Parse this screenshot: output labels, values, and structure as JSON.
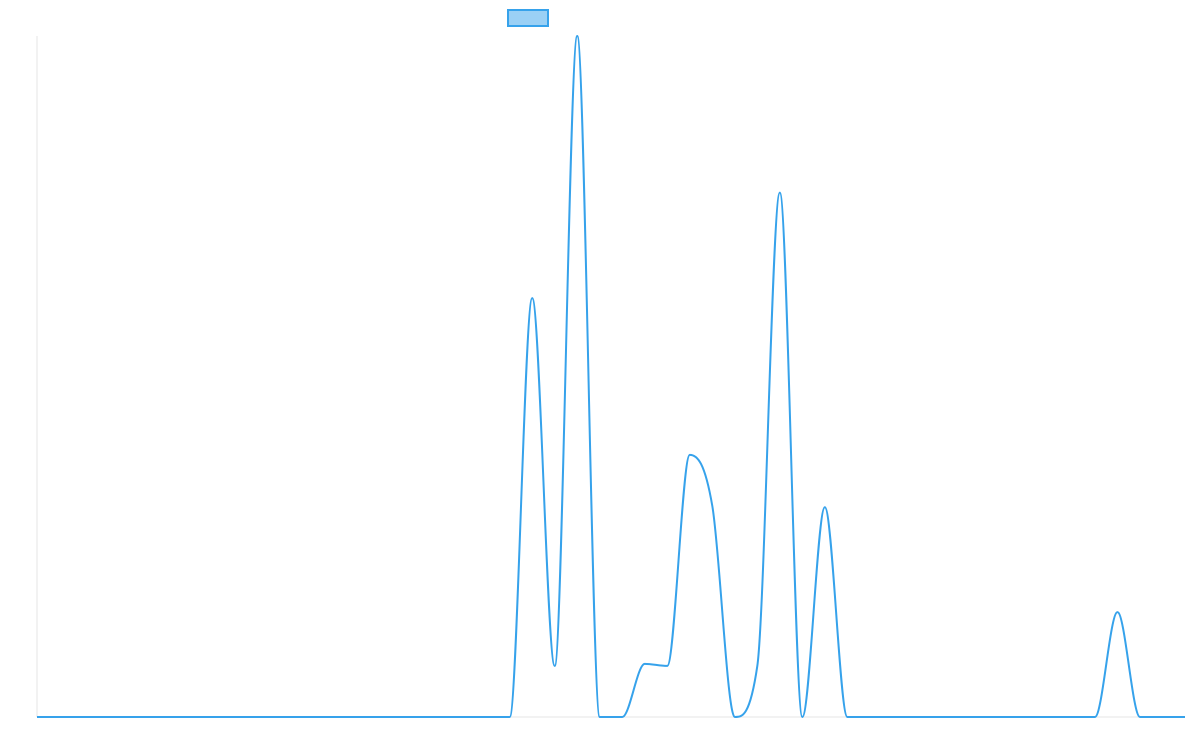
{
  "chart_data": {
    "type": "line",
    "title": "",
    "xlabel": "",
    "ylabel": "",
    "legend": {
      "placement": "top-center",
      "entries": [
        {
          "label": "",
          "color": "#36a2eb",
          "fill": "rgba(54,162,235,0.5)"
        }
      ]
    },
    "grid": false,
    "axes_visible": {
      "x_baseline": true,
      "y_axis_line": true,
      "tick_labels": false
    },
    "x": [
      0,
      1,
      2,
      3,
      4,
      5,
      6,
      7,
      8,
      9,
      10,
      11,
      12,
      13,
      14,
      15,
      16,
      17,
      18,
      19,
      20,
      21,
      22,
      23,
      24,
      25,
      26,
      27,
      28,
      29,
      30,
      31,
      32,
      33,
      34,
      35,
      36,
      37,
      38,
      39,
      40,
      41,
      42,
      43,
      44,
      45,
      46,
      47,
      48,
      49,
      50,
      51
    ],
    "series": [
      {
        "color": "#36a2eb",
        "values": [
          0,
          0,
          0,
          0,
          0,
          0,
          0,
          0,
          0,
          0,
          0,
          0,
          0,
          0,
          0,
          0,
          0,
          0,
          0,
          0,
          0,
          0,
          61.5,
          7.5,
          100,
          0,
          0,
          7.8,
          7.5,
          38.5,
          31,
          0,
          7.5,
          77,
          0,
          30.8,
          0,
          0,
          0,
          0,
          0,
          0,
          0,
          0,
          0,
          0,
          0,
          0,
          15.4,
          0,
          0,
          0
        ]
      }
    ],
    "xlim": [
      0,
      51
    ],
    "ylim": [
      0,
      100
    ]
  }
}
